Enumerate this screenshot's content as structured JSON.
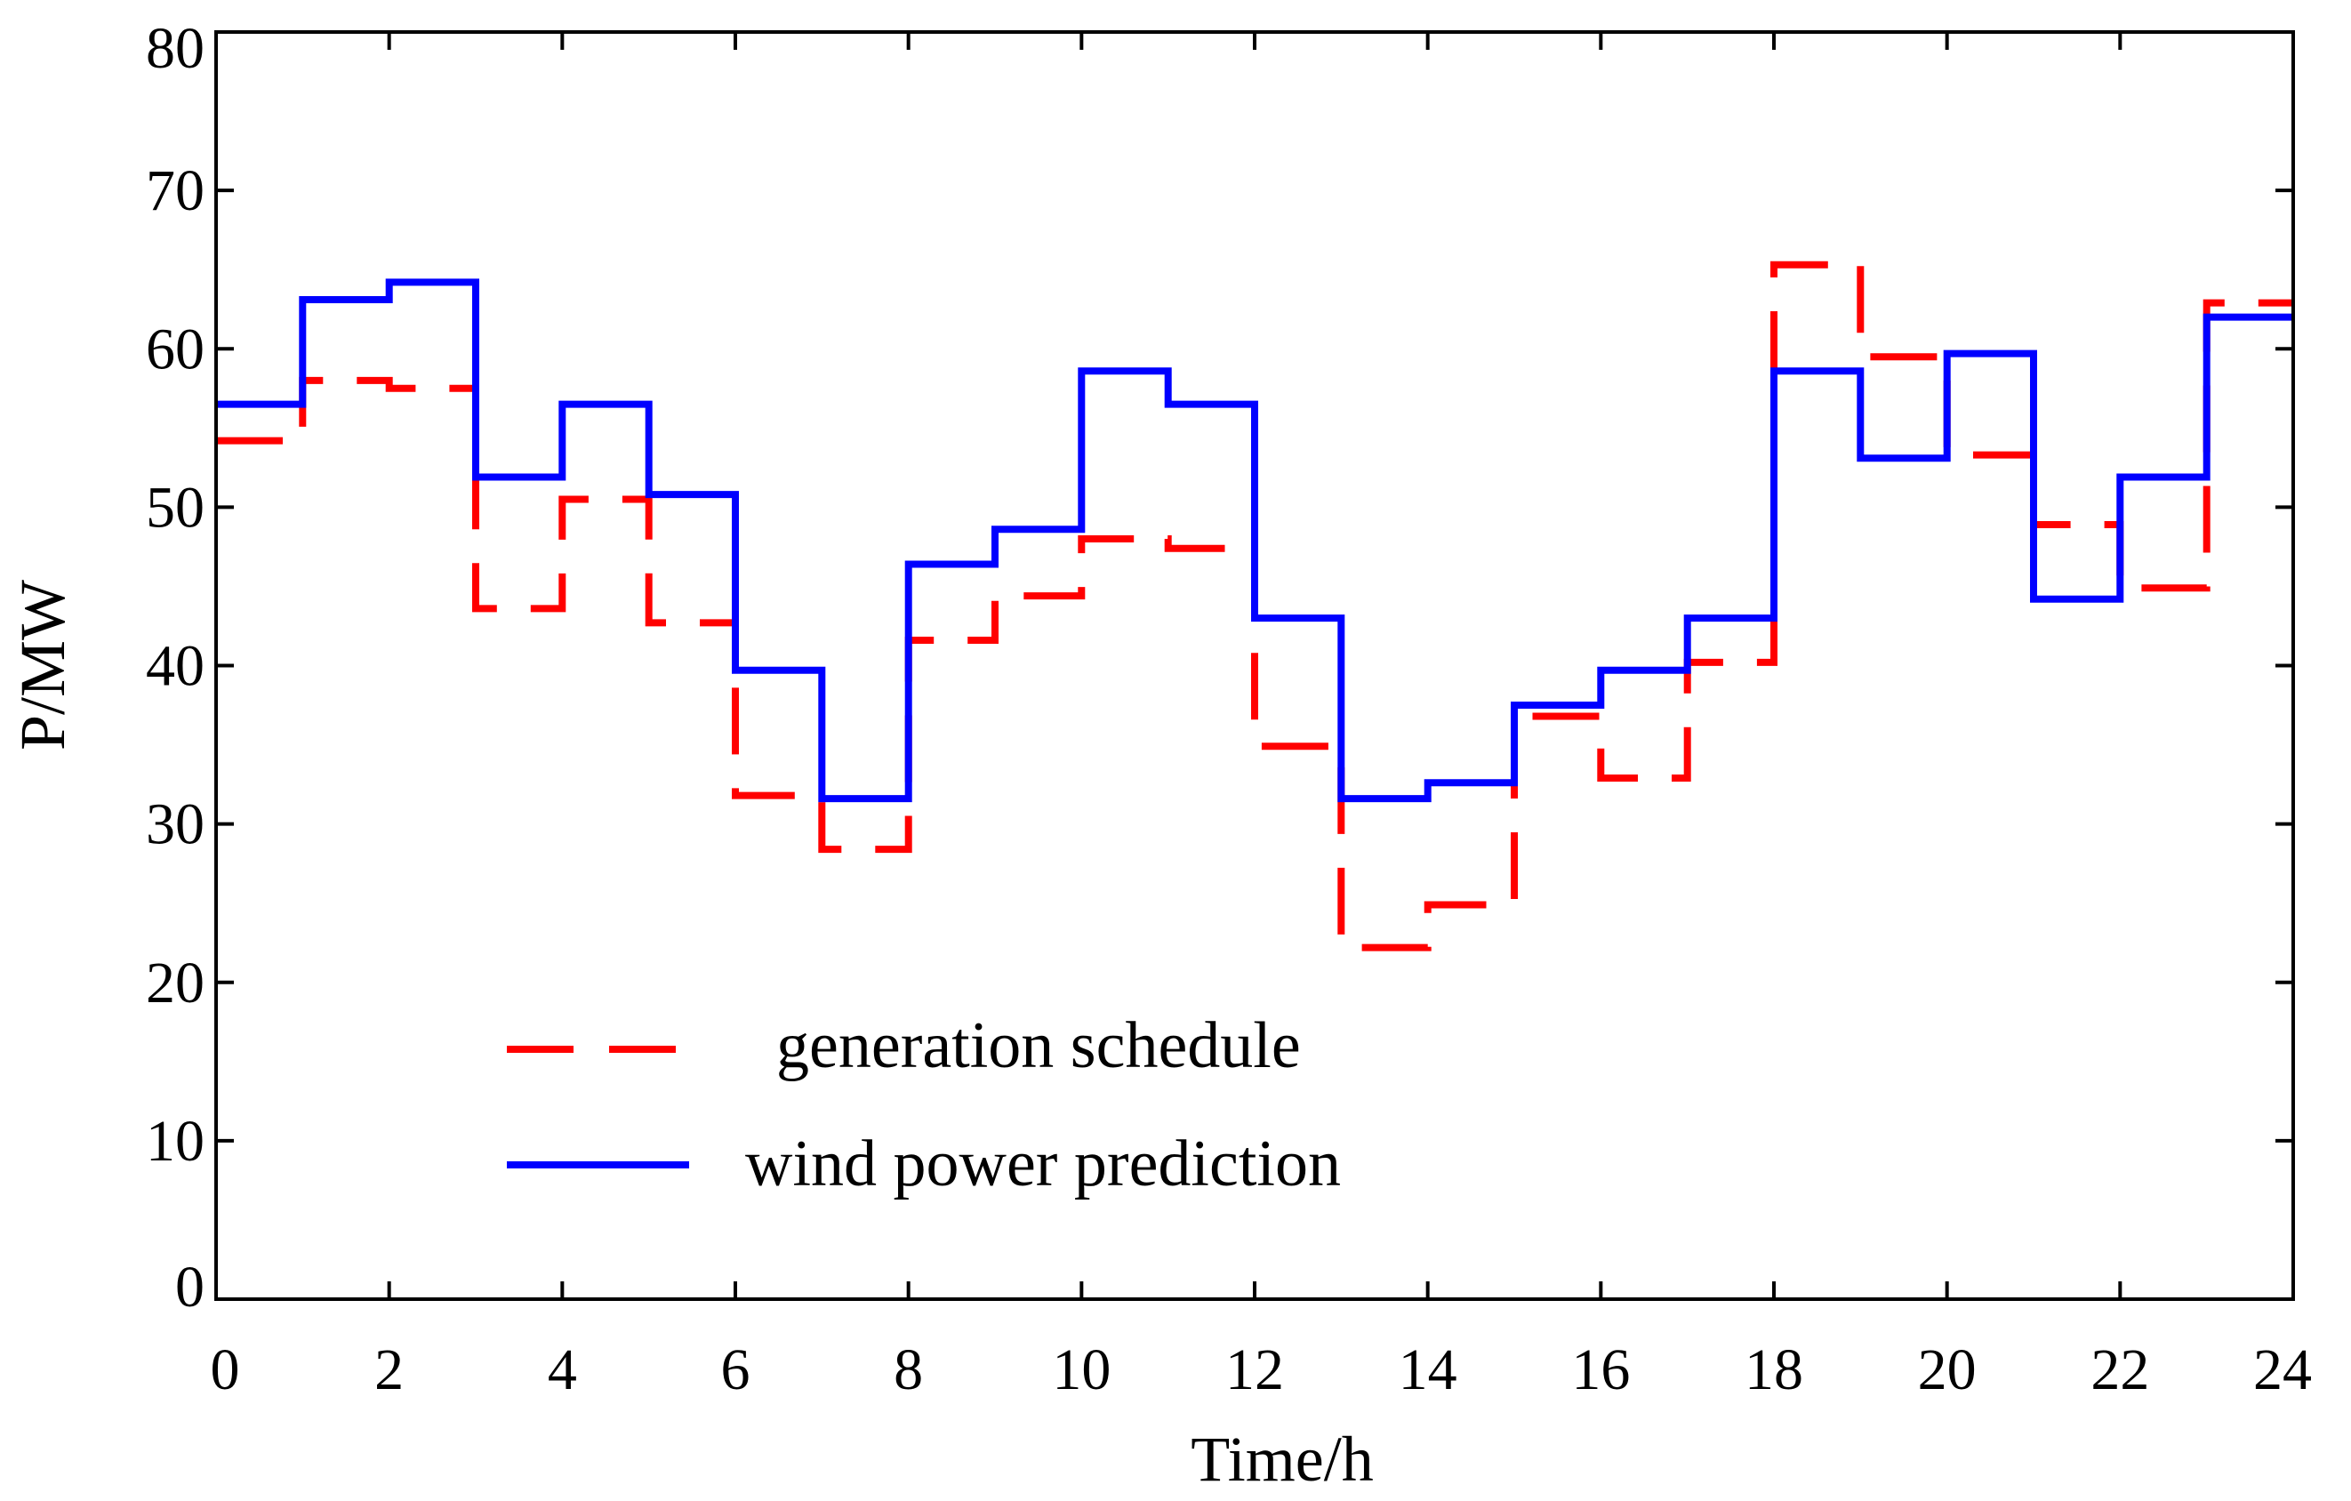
{
  "chart_data": {
    "type": "line",
    "step": true,
    "title": "",
    "xlabel": "Time/h",
    "ylabel": "P/MW",
    "xlim": [
      0,
      24
    ],
    "ylim": [
      0,
      80
    ],
    "xticks": [
      0,
      2,
      4,
      6,
      8,
      10,
      12,
      14,
      16,
      18,
      20,
      22,
      24
    ],
    "yticks": [
      0,
      10,
      20,
      30,
      40,
      50,
      60,
      70,
      80
    ],
    "grid": false,
    "legend_position": "lower-left",
    "series": [
      {
        "name": "generation schedule",
        "style": "dashed",
        "color": "#ff0000",
        "values": [
          54.2,
          58.0,
          57.5,
          43.6,
          50.5,
          42.7,
          31.8,
          28.4,
          41.6,
          44.4,
          48.0,
          47.4,
          34.9,
          22.2,
          24.9,
          36.8,
          32.9,
          40.2,
          65.3,
          59.5,
          53.3,
          48.9,
          44.9,
          62.9
        ]
      },
      {
        "name": "wind power prediction",
        "style": "solid",
        "color": "#0000ff",
        "values": [
          56.5,
          63.1,
          64.2,
          51.9,
          56.5,
          50.8,
          39.7,
          31.6,
          46.4,
          48.6,
          58.6,
          56.5,
          43.0,
          31.6,
          32.6,
          37.5,
          39.7,
          43.0,
          58.6,
          53.1,
          59.7,
          44.2,
          51.9,
          62.0
        ]
      }
    ]
  }
}
